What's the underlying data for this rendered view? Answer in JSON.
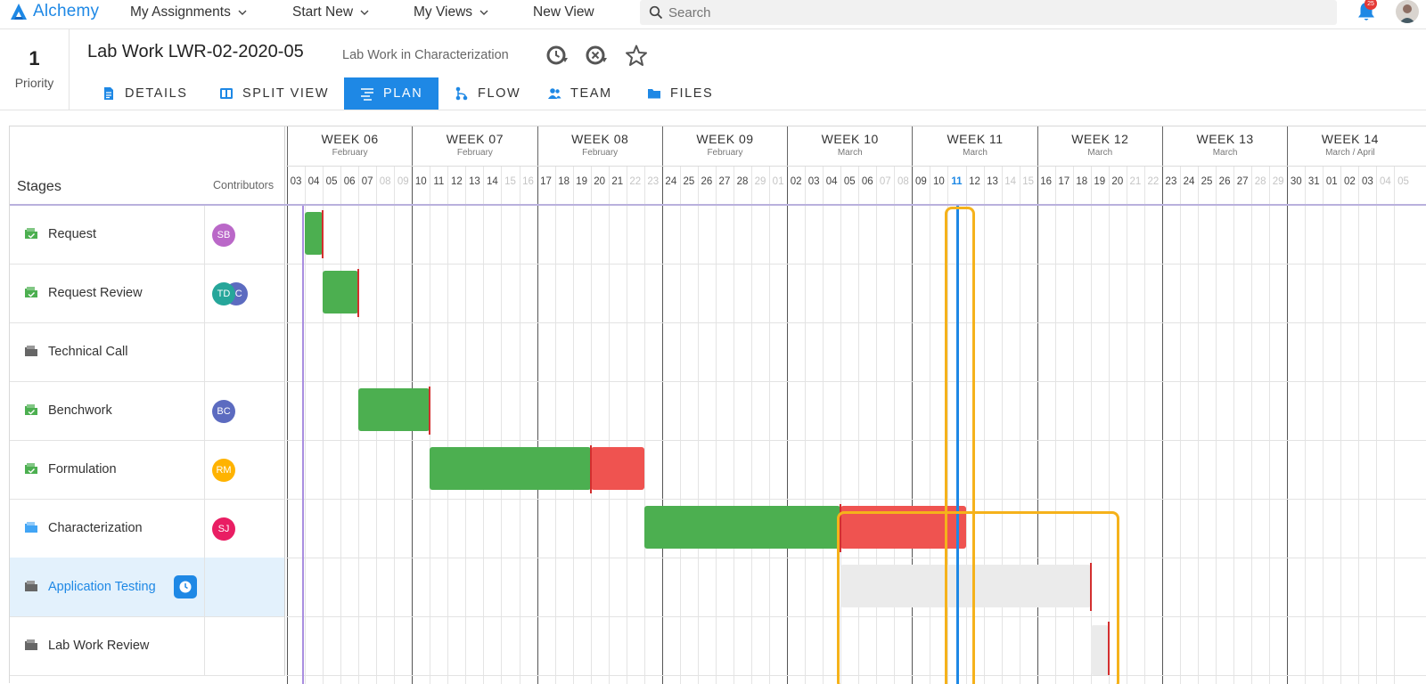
{
  "app": {
    "logo_text": "Alchemy",
    "accent": "#1e88e5"
  },
  "nav": {
    "items": [
      {
        "label": "My Assignments",
        "dropdown": true
      },
      {
        "label": "Start New",
        "dropdown": true
      },
      {
        "label": "My Views",
        "dropdown": true
      },
      {
        "label": "New View",
        "dropdown": false
      }
    ],
    "search_placeholder": "Search",
    "notification_count": "25"
  },
  "header": {
    "priority_value": "1",
    "priority_label": "Priority",
    "title": "Lab Work LWR-02-2020-05",
    "subtitle": "Lab Work in Characterization",
    "tabs": [
      {
        "label": "DETAILS",
        "icon": "document-icon",
        "active": false
      },
      {
        "label": "SPLIT VIEW",
        "icon": "split-view-icon",
        "active": false
      },
      {
        "label": "PLAN",
        "icon": "plan-icon",
        "active": true
      },
      {
        "label": "FLOW",
        "icon": "flow-icon",
        "active": false
      },
      {
        "label": "TEAM",
        "icon": "team-icon",
        "active": false
      },
      {
        "label": "FILES",
        "icon": "folder-icon",
        "active": false
      }
    ]
  },
  "gantt": {
    "stages_title": "Stages",
    "contributors_title": "Contributors",
    "weeks": [
      {
        "name": "WEEK 06",
        "month": "February"
      },
      {
        "name": "WEEK 07",
        "month": "February"
      },
      {
        "name": "WEEK 08",
        "month": "February"
      },
      {
        "name": "WEEK 09",
        "month": "February"
      },
      {
        "name": "WEEK 10",
        "month": "March"
      },
      {
        "name": "WEEK 11",
        "month": "March"
      },
      {
        "name": "WEEK 12",
        "month": "March"
      },
      {
        "name": "WEEK 13",
        "month": "March"
      },
      {
        "name": "WEEK 14",
        "month": "March / April"
      }
    ],
    "days": [
      "03",
      "04",
      "05",
      "06",
      "07",
      "08",
      "09",
      "10",
      "11",
      "12",
      "13",
      "14",
      "15",
      "16",
      "17",
      "18",
      "19",
      "20",
      "21",
      "22",
      "23",
      "24",
      "25",
      "26",
      "27",
      "28",
      "29",
      "01",
      "02",
      "03",
      "04",
      "05",
      "06",
      "07",
      "08",
      "09",
      "10",
      "11",
      "12",
      "13",
      "14",
      "15",
      "16",
      "17",
      "18",
      "19",
      "20",
      "21",
      "22",
      "23",
      "24",
      "25",
      "26",
      "27",
      "28",
      "29",
      "30",
      "31",
      "01",
      "02",
      "03",
      "04",
      "05"
    ],
    "today_index": 37,
    "colors": {
      "done": "#4caf50",
      "late": "#ef5350",
      "planned": "#ebebeb",
      "deadline": "#d32f2f",
      "today": "#1e88e5",
      "start": "#a98ee0",
      "highlight": "#f5b21b"
    },
    "stages": [
      {
        "name": "Request",
        "status": "complete",
        "contributors": [
          {
            "initials": "SB",
            "color": "#ba68c8"
          }
        ],
        "bars": [
          {
            "kind": "done",
            "start": 1,
            "end": 2
          }
        ],
        "deadline": 2
      },
      {
        "name": "Request Review",
        "status": "complete",
        "contributors": [
          {
            "initials": "TD",
            "color": "#26a69a"
          },
          {
            "initials": "JC",
            "color": "#5c6bc0"
          }
        ],
        "bars": [
          {
            "kind": "done",
            "start": 2,
            "end": 4
          }
        ],
        "deadline": 4
      },
      {
        "name": "Technical Call",
        "status": "skipped",
        "contributors": [],
        "bars": [],
        "deadline": null
      },
      {
        "name": "Benchwork",
        "status": "complete",
        "contributors": [
          {
            "initials": "BC",
            "color": "#5c6bc0"
          }
        ],
        "bars": [
          {
            "kind": "done",
            "start": 4,
            "end": 8
          }
        ],
        "deadline": 8
      },
      {
        "name": "Formulation",
        "status": "complete",
        "contributors": [
          {
            "initials": "RM",
            "color": "#ffb300"
          }
        ],
        "bars": [
          {
            "kind": "done",
            "start": 8,
            "end": 17
          },
          {
            "kind": "late",
            "start": 17,
            "end": 20
          }
        ],
        "deadline": 17
      },
      {
        "name": "Characterization",
        "status": "in-progress",
        "contributors": [
          {
            "initials": "SJ",
            "color": "#e91e63"
          }
        ],
        "bars": [
          {
            "kind": "done",
            "start": 20,
            "end": 31
          },
          {
            "kind": "late",
            "start": 31,
            "end": 38
          }
        ],
        "deadline": 31
      },
      {
        "name": "Application Testing",
        "status": "pending",
        "selected": true,
        "has_clock": true,
        "contributors": [],
        "bars": [
          {
            "kind": "planned",
            "start": 31,
            "end": 45
          }
        ],
        "deadline": 45
      },
      {
        "name": "Lab Work Review",
        "status": "pending",
        "contributors": [],
        "bars": [
          {
            "kind": "planned",
            "start": 45,
            "end": 46
          }
        ],
        "deadline": 46
      }
    ]
  }
}
